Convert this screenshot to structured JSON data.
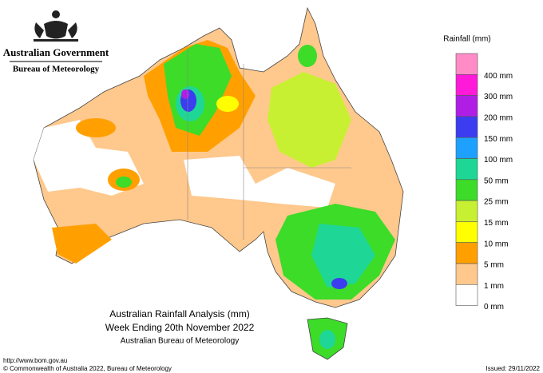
{
  "header": {
    "government": "Australian Government",
    "agency": "Bureau of Meteorology"
  },
  "legend": {
    "title": "Rainfall (mm)",
    "colors": [
      "#ff8cc6",
      "#ff1ad9",
      "#b01ee6",
      "#3c3cf0",
      "#1ea0ff",
      "#1ed796",
      "#3cdc28",
      "#c8f032",
      "#ffff00",
      "#ffa000",
      "#ffc88c",
      "#ffffff"
    ],
    "labels": [
      "400 mm",
      "300 mm",
      "200 mm",
      "150 mm",
      "100 mm",
      "50 mm",
      "25 mm",
      "15 mm",
      "10 mm",
      "5 mm",
      "1 mm",
      "0 mm"
    ]
  },
  "titles": [
    "Australian Rainfall Analysis (mm)",
    "Week Ending 20th November 2022",
    "Australian Bureau of Meteorology"
  ],
  "footer": {
    "url": "http://www.bom.gov.au",
    "copyright": "© Commonwealth of Australia 2022, Bureau of Meteorology",
    "issued": "Issued: 29/11/2022"
  }
}
